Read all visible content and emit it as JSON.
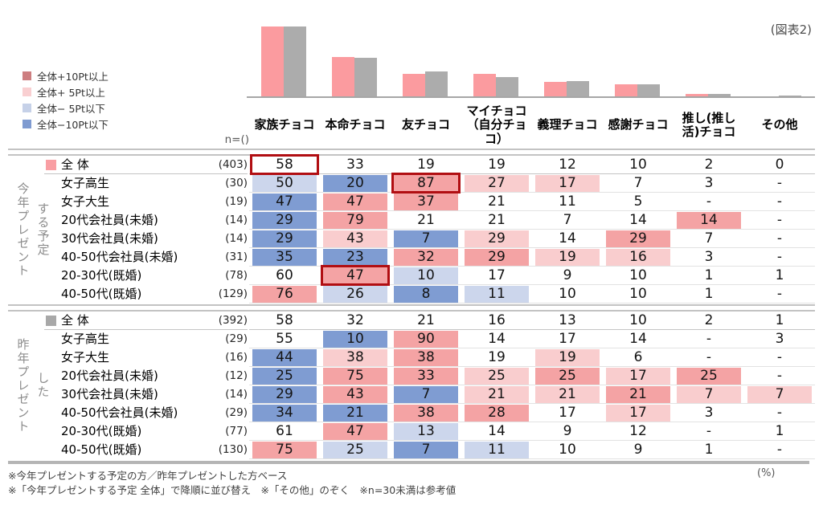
{
  "figure_label": "(図表2)",
  "n_label": "n=()",
  "unit_label": "(%)",
  "footnotes": [
    "※今年プレゼントする予定の方／昨年プレゼントした方ベース",
    "※「今年プレゼントする予定 全体」で降順に並び替え　※「その他」のぞく　※n=30未満は参考値"
  ],
  "legend": {
    "items": [
      {
        "label": "全体+10Pt以上",
        "color": "#CD7E80"
      },
      {
        "label": "全体+ 5Pt以上",
        "color": "#F9CFD1"
      },
      {
        "label": "全体− 5Pt以下",
        "color": "#C6D1E8"
      },
      {
        "label": "全体−10Pt以下",
        "color": "#7F9BD1"
      }
    ]
  },
  "chart_data": {
    "type": "bar",
    "title": "",
    "categories": [
      "家族チョコ",
      "本命チョコ",
      "友チョコ",
      "マイチョコ（自分チョコ）",
      "義理チョコ",
      "感謝チョコ",
      "推し(推し活)チョコ",
      "その他"
    ],
    "series": [
      {
        "name": "今年プレゼントする予定 全体",
        "color": "#FB9B9F",
        "values": [
          58,
          33,
          19,
          19,
          12,
          10,
          2,
          0
        ]
      },
      {
        "name": "昨年プレゼントした 全体",
        "color": "#ACACAC",
        "values": [
          58,
          32,
          21,
          16,
          13,
          10,
          2,
          1
        ]
      }
    ],
    "ylim": [
      0,
      60
    ],
    "unit": "%",
    "grid": false,
    "legend_position": "none"
  },
  "columns": [
    "家族チョコ",
    "本命チョコ",
    "友チョコ",
    "マイチョコ\n（自分チョ\nコ）",
    "義理チョコ",
    "感謝チョコ",
    "推し(推し\n活)チョコ",
    "その他"
  ],
  "colors": {
    "cell_plus10": "#F4A3A4",
    "cell_plus5": "#F9CDCE",
    "cell_minus5": "#CCD6EC",
    "cell_minus10": "#7F9CD2",
    "highlight_box": "#B10E12"
  },
  "groups": [
    {
      "vertical_main": "今年プレゼント",
      "vertical_sub": "する予定",
      "marker_color": "#F99EA3",
      "rows": [
        {
          "label": "全 体",
          "n": "(403)",
          "marker": true,
          "values": [
            "58",
            "33",
            "19",
            "19",
            "12",
            "10",
            "2",
            "0"
          ],
          "cell_levels": [
            "",
            "",
            "",
            "",
            "",
            "",
            "",
            ""
          ],
          "highlight_col": 0
        },
        {
          "label": "女子高生",
          "n": "(30)",
          "values": [
            "50",
            "20",
            "87",
            "27",
            "17",
            "7",
            "3",
            "-"
          ],
          "cell_levels": [
            "m5",
            "m10",
            "p10",
            "p5",
            "p5",
            "",
            "",
            ""
          ],
          "highlight_col": 2
        },
        {
          "label": "女子大生",
          "n": "(19)",
          "values": [
            "47",
            "47",
            "37",
            "21",
            "11",
            "5",
            "-",
            "-"
          ],
          "cell_levels": [
            "m10",
            "p10",
            "p10",
            "",
            "",
            "",
            "",
            ""
          ]
        },
        {
          "label": "20代会社員(未婚)",
          "n": "(14)",
          "values": [
            "29",
            "79",
            "21",
            "21",
            "7",
            "14",
            "14",
            "-"
          ],
          "cell_levels": [
            "m10",
            "p10",
            "",
            "",
            "",
            "",
            "p10",
            ""
          ]
        },
        {
          "label": "30代会社員(未婚)",
          "n": "(14)",
          "values": [
            "29",
            "43",
            "7",
            "29",
            "14",
            "29",
            "7",
            "-"
          ],
          "cell_levels": [
            "m10",
            "p5",
            "m10",
            "p5",
            "",
            "p10",
            "",
            ""
          ]
        },
        {
          "label": "40-50代会社員(未婚)",
          "n": "(31)",
          "values": [
            "35",
            "23",
            "32",
            "29",
            "19",
            "16",
            "3",
            "-"
          ],
          "cell_levels": [
            "m10",
            "m10",
            "p10",
            "p10",
            "p5",
            "p5",
            "",
            ""
          ]
        },
        {
          "label": "20-30代(既婚)",
          "n": "(78)",
          "values": [
            "60",
            "47",
            "10",
            "17",
            "9",
            "10",
            "1",
            "1"
          ],
          "cell_levels": [
            "",
            "p10",
            "m5",
            "",
            "",
            "",
            "",
            ""
          ],
          "highlight_col": 1
        },
        {
          "label": "40-50代(既婚)",
          "n": "(129)",
          "values": [
            "76",
            "26",
            "8",
            "11",
            "10",
            "10",
            "1",
            "-"
          ],
          "cell_levels": [
            "p10",
            "m5",
            "m10",
            "m5",
            "",
            "",
            "",
            ""
          ]
        }
      ]
    },
    {
      "vertical_main": "昨年プレゼント",
      "vertical_sub": "した",
      "marker_color": "#A8A8A8",
      "rows": [
        {
          "label": "全 体",
          "n": "(392)",
          "marker": true,
          "values": [
            "58",
            "32",
            "21",
            "16",
            "13",
            "10",
            "2",
            "1"
          ],
          "cell_levels": [
            "",
            "",
            "",
            "",
            "",
            "",
            "",
            ""
          ]
        },
        {
          "label": "女子高生",
          "n": "(29)",
          "values": [
            "55",
            "10",
            "90",
            "14",
            "17",
            "14",
            "-",
            "3"
          ],
          "cell_levels": [
            "",
            "m10",
            "p10",
            "",
            "",
            "",
            "",
            ""
          ]
        },
        {
          "label": "女子大生",
          "n": "(16)",
          "values": [
            "44",
            "38",
            "38",
            "19",
            "19",
            "6",
            "-",
            "-"
          ],
          "cell_levels": [
            "m10",
            "p5",
            "p10",
            "",
            "p5",
            "",
            "",
            ""
          ]
        },
        {
          "label": "20代会社員(未婚)",
          "n": "(12)",
          "values": [
            "25",
            "75",
            "33",
            "25",
            "25",
            "17",
            "25",
            "-"
          ],
          "cell_levels": [
            "m10",
            "p10",
            "p10",
            "p5",
            "p10",
            "p5",
            "p10",
            ""
          ]
        },
        {
          "label": "30代会社員(未婚)",
          "n": "(14)",
          "values": [
            "29",
            "43",
            "7",
            "21",
            "21",
            "21",
            "7",
            "7"
          ],
          "cell_levels": [
            "m10",
            "p10",
            "m10",
            "p5",
            "p5",
            "p10",
            "p5",
            "p5"
          ]
        },
        {
          "label": "40-50代会社員(未婚)",
          "n": "(29)",
          "values": [
            "34",
            "21",
            "38",
            "28",
            "17",
            "17",
            "3",
            "-"
          ],
          "cell_levels": [
            "m10",
            "m10",
            "p10",
            "p10",
            "",
            "p5",
            "",
            ""
          ]
        },
        {
          "label": "20-30代(既婚)",
          "n": "(77)",
          "values": [
            "61",
            "47",
            "13",
            "14",
            "9",
            "12",
            "-",
            "1"
          ],
          "cell_levels": [
            "",
            "p10",
            "m5",
            "",
            "",
            "",
            "",
            ""
          ]
        },
        {
          "label": "40-50代(既婚)",
          "n": "(130)",
          "values": [
            "75",
            "25",
            "7",
            "11",
            "10",
            "9",
            "1",
            "-"
          ],
          "cell_levels": [
            "p10",
            "m5",
            "m10",
            "m5",
            "",
            "",
            "",
            ""
          ]
        }
      ]
    }
  ]
}
